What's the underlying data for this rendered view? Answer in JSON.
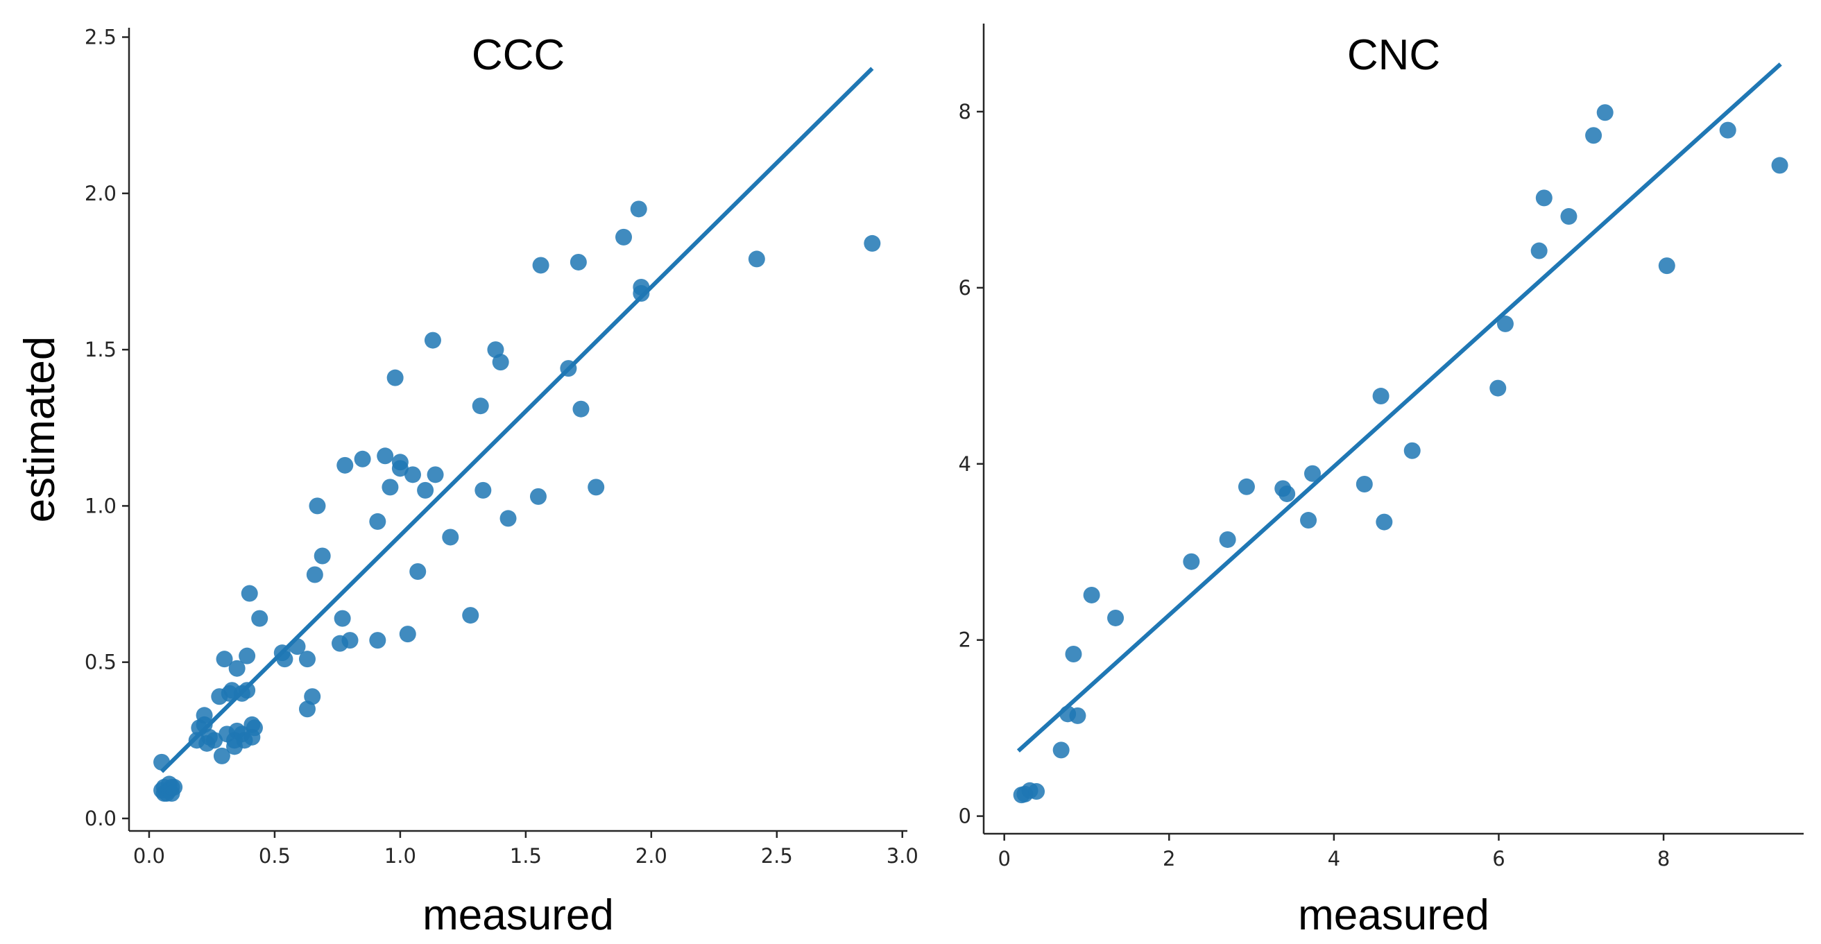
{
  "figure": {
    "ylabel": "estimated"
  },
  "chart_data": [
    {
      "type": "scatter",
      "title": "CCC",
      "xlabel": "measured",
      "ylabel": "estimated",
      "xlim": [
        -0.08,
        3.02
      ],
      "ylim": [
        -0.04,
        2.53
      ],
      "xticks": [
        0.0,
        0.5,
        1.0,
        1.5,
        2.0,
        2.5,
        3.0
      ],
      "xtick_labels": [
        "0.0",
        "0.5",
        "1.0",
        "1.5",
        "2.0",
        "2.5",
        "3.0"
      ],
      "yticks": [
        0.0,
        0.5,
        1.0,
        1.5,
        2.0,
        2.5
      ],
      "ytick_labels": [
        "0.0",
        "0.5",
        "1.0",
        "1.5",
        "2.0",
        "2.5"
      ],
      "point_color": "#1f77b4",
      "line_color": "#1f77b4",
      "fit_line": {
        "x": [
          0.05,
          2.88
        ],
        "y": [
          0.15,
          2.4
        ]
      },
      "points": [
        [
          0.05,
          0.18
        ],
        [
          0.05,
          0.09
        ],
        [
          0.06,
          0.1
        ],
        [
          0.07,
          0.08
        ],
        [
          0.08,
          0.11
        ],
        [
          0.08,
          0.09
        ],
        [
          0.09,
          0.08
        ],
        [
          0.1,
          0.1
        ],
        [
          0.06,
          0.08
        ],
        [
          0.09,
          0.1
        ],
        [
          0.19,
          0.25
        ],
        [
          0.2,
          0.29
        ],
        [
          0.22,
          0.33
        ],
        [
          0.22,
          0.3
        ],
        [
          0.24,
          0.26
        ],
        [
          0.23,
          0.24
        ],
        [
          0.26,
          0.25
        ],
        [
          0.28,
          0.39
        ],
        [
          0.29,
          0.2
        ],
        [
          0.3,
          0.51
        ],
        [
          0.31,
          0.27
        ],
        [
          0.32,
          0.4
        ],
        [
          0.33,
          0.41
        ],
        [
          0.34,
          0.23
        ],
        [
          0.34,
          0.25
        ],
        [
          0.35,
          0.48
        ],
        [
          0.35,
          0.28
        ],
        [
          0.37,
          0.4
        ],
        [
          0.37,
          0.27
        ],
        [
          0.38,
          0.25
        ],
        [
          0.39,
          0.41
        ],
        [
          0.39,
          0.52
        ],
        [
          0.4,
          0.72
        ],
        [
          0.41,
          0.3
        ],
        [
          0.41,
          0.26
        ],
        [
          0.42,
          0.29
        ],
        [
          0.44,
          0.64
        ],
        [
          0.53,
          0.53
        ],
        [
          0.54,
          0.51
        ],
        [
          0.59,
          0.55
        ],
        [
          0.63,
          0.51
        ],
        [
          0.63,
          0.35
        ],
        [
          0.65,
          0.39
        ],
        [
          0.66,
          0.78
        ],
        [
          0.67,
          1.0
        ],
        [
          0.69,
          0.84
        ],
        [
          0.76,
          0.56
        ],
        [
          0.77,
          0.64
        ],
        [
          0.78,
          1.13
        ],
        [
          0.8,
          0.57
        ],
        [
          0.85,
          1.15
        ],
        [
          0.91,
          0.57
        ],
        [
          0.91,
          0.95
        ],
        [
          0.94,
          1.16
        ],
        [
          0.96,
          1.06
        ],
        [
          0.98,
          1.41
        ],
        [
          1.0,
          1.14
        ],
        [
          1.0,
          1.12
        ],
        [
          1.03,
          0.59
        ],
        [
          1.05,
          1.1
        ],
        [
          1.07,
          0.79
        ],
        [
          1.1,
          1.05
        ],
        [
          1.13,
          1.53
        ],
        [
          1.14,
          1.1
        ],
        [
          1.2,
          0.9
        ],
        [
          1.28,
          0.65
        ],
        [
          1.32,
          1.32
        ],
        [
          1.33,
          1.05
        ],
        [
          1.38,
          1.5
        ],
        [
          1.4,
          1.46
        ],
        [
          1.43,
          0.96
        ],
        [
          1.55,
          1.03
        ],
        [
          1.56,
          1.77
        ],
        [
          1.67,
          1.44
        ],
        [
          1.71,
          1.78
        ],
        [
          1.72,
          1.31
        ],
        [
          1.78,
          1.06
        ],
        [
          1.89,
          1.86
        ],
        [
          1.95,
          1.95
        ],
        [
          1.96,
          1.7
        ],
        [
          1.96,
          1.68
        ],
        [
          2.42,
          1.79
        ],
        [
          2.88,
          1.84
        ]
      ]
    },
    {
      "type": "scatter",
      "title": "CNC",
      "xlabel": "measured",
      "ylabel": "",
      "xlim": [
        -0.25,
        9.7
      ],
      "ylim": [
        -0.2,
        9.0
      ],
      "xticks": [
        0,
        2,
        4,
        6,
        8
      ],
      "xtick_labels": [
        "0",
        "2",
        "4",
        "6",
        "8"
      ],
      "yticks": [
        0,
        2,
        4,
        6,
        8
      ],
      "ytick_labels": [
        "0",
        "2",
        "4",
        "6",
        "8"
      ],
      "point_color": "#1f77b4",
      "line_color": "#1f77b4",
      "fit_line": {
        "x": [
          0.17,
          9.42
        ],
        "y": [
          0.74,
          8.54
        ]
      },
      "points": [
        [
          0.21,
          0.24
        ],
        [
          0.25,
          0.25
        ],
        [
          0.31,
          0.29
        ],
        [
          0.39,
          0.28
        ],
        [
          0.69,
          0.75
        ],
        [
          0.77,
          1.16
        ],
        [
          0.84,
          1.84
        ],
        [
          0.89,
          1.14
        ],
        [
          1.06,
          2.51
        ],
        [
          1.35,
          2.25
        ],
        [
          2.27,
          2.89
        ],
        [
          2.71,
          3.14
        ],
        [
          2.94,
          3.74
        ],
        [
          3.38,
          3.72
        ],
        [
          3.43,
          3.66
        ],
        [
          3.69,
          3.36
        ],
        [
          3.74,
          3.89
        ],
        [
          4.37,
          3.77
        ],
        [
          4.57,
          4.77
        ],
        [
          4.61,
          3.34
        ],
        [
          4.95,
          4.15
        ],
        [
          5.99,
          4.86
        ],
        [
          6.08,
          5.59
        ],
        [
          6.49,
          6.42
        ],
        [
          6.55,
          7.02
        ],
        [
          6.85,
          6.81
        ],
        [
          7.15,
          7.73
        ],
        [
          7.29,
          7.99
        ],
        [
          8.04,
          6.25
        ],
        [
          8.78,
          7.79
        ],
        [
          9.41,
          7.39
        ]
      ]
    }
  ]
}
